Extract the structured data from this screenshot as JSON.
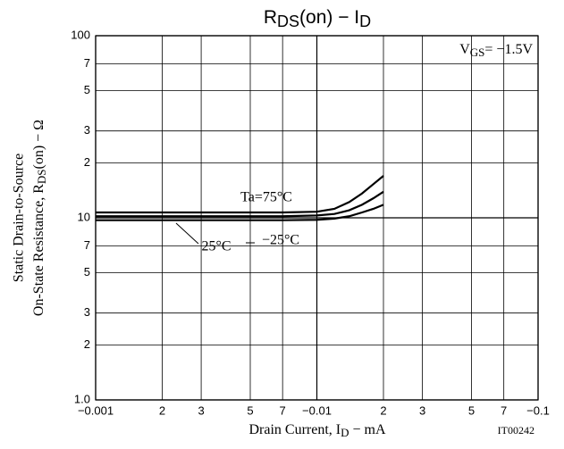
{
  "chart_data": {
    "type": "line",
    "title": [
      "R",
      "DS",
      "(on) − I",
      "D"
    ],
    "ylabel": [
      "Static Drain-to-Source",
      [
        "On-State Resistance, R",
        "DS",
        "(on) − Ω"
      ]
    ],
    "xlabel": [
      "Drain Current, I",
      "D",
      " − mA"
    ],
    "annotation": [
      "V",
      "GS",
      "= −1.5V"
    ],
    "code": "IT00242",
    "xscale": "log",
    "yscale": "log",
    "grid": true,
    "xlim": [
      -0.001,
      -0.1
    ],
    "ylim": [
      1,
      100
    ],
    "xticks": [
      {
        "value": -0.001,
        "label": "−0.001"
      },
      {
        "value": -0.002,
        "label": "2"
      },
      {
        "value": -0.003,
        "label": "3"
      },
      {
        "value": -0.005,
        "label": "5"
      },
      {
        "value": -0.007,
        "label": "7"
      },
      {
        "value": -0.01,
        "label": "−0.01"
      },
      {
        "value": -0.02,
        "label": "2"
      },
      {
        "value": -0.03,
        "label": "3"
      },
      {
        "value": -0.05,
        "label": "5"
      },
      {
        "value": -0.07,
        "label": "7"
      },
      {
        "value": -0.1,
        "label": "−0.1"
      }
    ],
    "yticks": [
      {
        "value": 1,
        "label": "1.0"
      },
      2,
      3,
      5,
      7,
      10,
      {
        "value": 20,
        "label": "2"
      },
      {
        "value": 30,
        "label": "3"
      },
      {
        "value": 50,
        "label": "5"
      },
      {
        "value": 70,
        "label": "7"
      },
      100
    ],
    "x": [
      -0.001,
      -0.002,
      -0.005,
      -0.007,
      -0.01,
      -0.012,
      -0.014,
      -0.016,
      -0.018,
      -0.02
    ],
    "series": [
      {
        "name": "Ta=75°C",
        "color": "#000000",
        "values": [
          10.7,
          10.7,
          10.7,
          10.7,
          10.8,
          11.2,
          12.2,
          13.6,
          15.3,
          17
        ]
      },
      {
        "name": "25°C",
        "color": "#000000",
        "values": [
          10.2,
          10.2,
          10.2,
          10.2,
          10.3,
          10.5,
          11.0,
          11.8,
          12.8,
          13.9
        ]
      },
      {
        "name": "−25°C",
        "color": "#000000",
        "values": [
          9.7,
          9.7,
          9.7,
          9.7,
          9.75,
          9.9,
          10.2,
          10.7,
          11.2,
          11.8
        ]
      }
    ]
  }
}
